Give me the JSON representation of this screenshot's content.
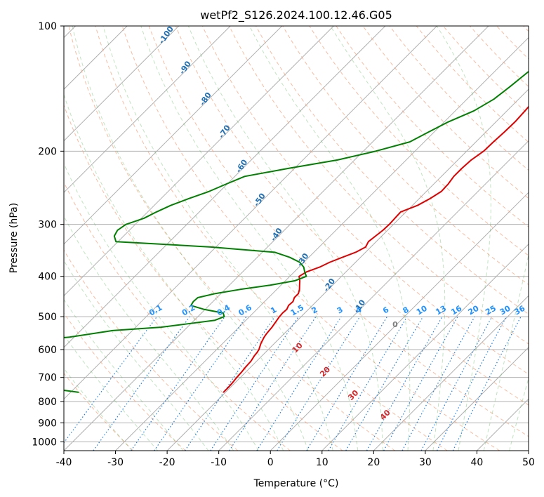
{
  "chart_data": {
    "type": "line",
    "title": "wetPf2_S126.2024.100.12.46.G05",
    "xlabel": "Temperature (°C)",
    "ylabel": "Pressure (hPa)",
    "xlim": [
      -40,
      50
    ],
    "ylim": [
      1050,
      100
    ],
    "y_scale": "log",
    "x_ticks": [
      -40,
      -30,
      -20,
      -10,
      0,
      10,
      20,
      30,
      40,
      50
    ],
    "y_ticks": [
      100,
      200,
      300,
      400,
      500,
      600,
      700,
      800,
      900,
      1000
    ],
    "grid": true,
    "series": [
      {
        "role": "temperature",
        "color": "#e00000",
        "points": [
          [
            -13.6,
            100
          ],
          [
            -14.3,
            105
          ],
          [
            -15.1,
            110
          ],
          [
            -16.8,
            120
          ],
          [
            -17.5,
            130
          ],
          [
            -17.3,
            140
          ],
          [
            -16.8,
            150
          ],
          [
            -16.5,
            160
          ],
          [
            -16.3,
            170
          ],
          [
            -16.4,
            180
          ],
          [
            -16.6,
            190
          ],
          [
            -16.7,
            200
          ],
          [
            -17.4,
            210
          ],
          [
            -17.6,
            220
          ],
          [
            -17.6,
            230
          ],
          [
            -17.2,
            240
          ],
          [
            -17.1,
            250
          ],
          [
            -17.9,
            260
          ],
          [
            -19.0,
            270
          ],
          [
            -21.0,
            280
          ],
          [
            -20.9,
            290
          ],
          [
            -20.8,
            300
          ],
          [
            -20.9,
            310
          ],
          [
            -21.2,
            320
          ],
          [
            -21.5,
            330
          ],
          [
            -21.0,
            340
          ],
          [
            -21.9,
            350
          ],
          [
            -23.5,
            360
          ],
          [
            -25.0,
            370
          ],
          [
            -26.0,
            380
          ],
          [
            -27.6,
            390
          ],
          [
            -28.2,
            400
          ],
          [
            -27.2,
            410
          ],
          [
            -26.4,
            420
          ],
          [
            -25.6,
            430
          ],
          [
            -25.0,
            440
          ],
          [
            -25.0,
            450
          ],
          [
            -24.5,
            460
          ],
          [
            -24.6,
            470
          ],
          [
            -24.2,
            480
          ],
          [
            -24.3,
            490
          ],
          [
            -24.2,
            500
          ],
          [
            -24.0,
            510
          ],
          [
            -23.8,
            520
          ],
          [
            -23.6,
            530
          ],
          [
            -23.5,
            540
          ],
          [
            -23.4,
            550
          ],
          [
            -23.2,
            560
          ],
          [
            -22.9,
            570
          ],
          [
            -22.6,
            580
          ],
          [
            -22.2,
            590
          ],
          [
            -21.8,
            600
          ],
          [
            -21.6,
            610
          ],
          [
            -21.5,
            620
          ],
          [
            -21.1,
            640
          ],
          [
            -21.0,
            660
          ],
          [
            -20.8,
            680
          ],
          [
            -20.7,
            700
          ],
          [
            -20.5,
            720
          ],
          [
            -20.4,
            740
          ],
          [
            -20.4,
            760
          ]
        ]
      },
      {
        "role": "dewpoint",
        "color": "#008000",
        "points": [
          [
            -21.3,
            100
          ],
          [
            -21.7,
            105
          ],
          [
            -22.2,
            110
          ],
          [
            -22.9,
            120
          ],
          [
            -23.5,
            130
          ],
          [
            -24.1,
            140
          ],
          [
            -24.8,
            150
          ],
          [
            -26.4,
            160
          ],
          [
            -29.2,
            170
          ],
          [
            -31.1,
            180
          ],
          [
            -32.8,
            190
          ],
          [
            -37.6,
            200
          ],
          [
            -43.3,
            210
          ],
          [
            -51.2,
            220
          ],
          [
            -58.1,
            230
          ],
          [
            -60.2,
            240
          ],
          [
            -62.1,
            250
          ],
          [
            -64.6,
            260
          ],
          [
            -66.8,
            270
          ],
          [
            -68.3,
            280
          ],
          [
            -69.5,
            290
          ],
          [
            -71.8,
            300
          ],
          [
            -72.3,
            310
          ],
          [
            -71.8,
            320
          ],
          [
            -70.4,
            330
          ],
          [
            -51.0,
            340
          ],
          [
            -37.6,
            350
          ],
          [
            -33.7,
            360
          ],
          [
            -30.8,
            370
          ],
          [
            -29.1,
            380
          ],
          [
            -28.0,
            390
          ],
          [
            -26.8,
            400
          ],
          [
            -28.2,
            410
          ],
          [
            -32.1,
            420
          ],
          [
            -37.1,
            430
          ],
          [
            -41.1,
            440
          ],
          [
            -43.7,
            450
          ],
          [
            -43.8,
            460
          ],
          [
            -43.5,
            470
          ],
          [
            -40.3,
            480
          ],
          [
            -35.8,
            490
          ],
          [
            -34.9,
            500
          ],
          [
            -36.0,
            510
          ],
          [
            -40.5,
            520
          ],
          [
            -45.1,
            530
          ],
          [
            -53.8,
            540
          ],
          [
            -57.4,
            550
          ],
          [
            -60.9,
            560
          ],
          [
            -67.0,
            570
          ],
          [
            -73.0,
            580
          ],
          [
            -83.0,
            590
          ],
          [
            -93.1,
            600
          ],
          [
            -92.3,
            610
          ],
          [
            -89.4,
            620
          ],
          [
            -70.8,
            640
          ],
          [
            -68.5,
            660
          ],
          [
            -63.3,
            680
          ],
          [
            -65.8,
            700
          ],
          [
            -62.6,
            720
          ],
          [
            -56.3,
            740
          ],
          [
            -48.4,
            760
          ]
        ]
      }
    ],
    "lcl_label": "0",
    "dry_adiabat_labels": [
      "-100",
      "-90",
      "-80",
      "-70",
      "-60",
      "-50",
      "-40",
      "-30",
      "-20",
      "-10"
    ],
    "moist_adiabat_labels": [
      "10",
      "20",
      "30",
      "40"
    ],
    "mixing_ratio_labels": [
      "0.1",
      "0.2",
      "0.4",
      "0.6",
      "1",
      "1.5",
      "2",
      "3",
      "4",
      "6",
      "8",
      "10",
      "13",
      "16",
      "20",
      "25",
      "30",
      "36"
    ]
  }
}
